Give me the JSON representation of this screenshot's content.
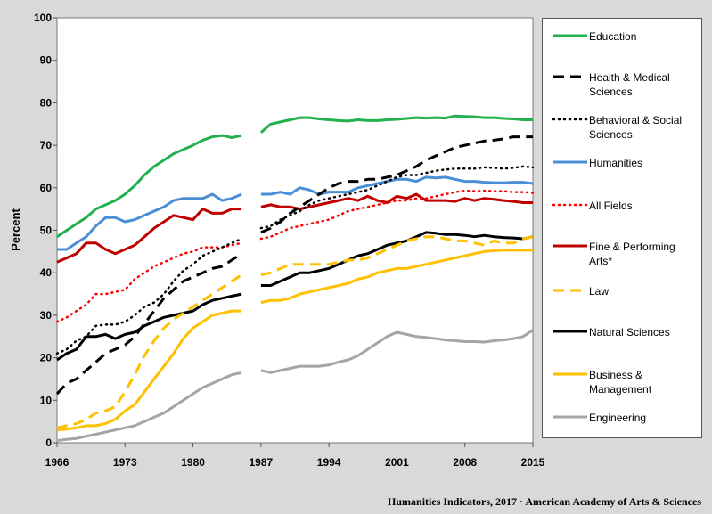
{
  "chart_data": {
    "type": "line",
    "title": "",
    "xlabel": "",
    "ylabel": "Percent",
    "xlim": [
      1966,
      2015
    ],
    "ylim": [
      0,
      100
    ],
    "x_ticks": [
      1966,
      1973,
      1980,
      1987,
      1994,
      2001,
      2008,
      2015
    ],
    "y_ticks": [
      0,
      10,
      20,
      30,
      40,
      50,
      60,
      70,
      80,
      90,
      100
    ],
    "grid": false,
    "legend_position": "right",
    "gap_years": [
      1986
    ],
    "series": [
      {
        "name": "Education",
        "color": "#22b14c",
        "style": "solid",
        "x": [
          1966,
          1967,
          1968,
          1969,
          1970,
          1971,
          1972,
          1973,
          1974,
          1975,
          1976,
          1977,
          1978,
          1979,
          1980,
          1981,
          1982,
          1983,
          1984,
          1985,
          1987,
          1988,
          1989,
          1990,
          1991,
          1992,
          1993,
          1994,
          1995,
          1996,
          1997,
          1998,
          1999,
          2000,
          2001,
          2002,
          2003,
          2004,
          2005,
          2006,
          2007,
          2008,
          2009,
          2010,
          2011,
          2012,
          2013,
          2014,
          2015
        ],
        "y": [
          48.5,
          50,
          51.5,
          53,
          55,
          56,
          57,
          58.5,
          60.5,
          63,
          65,
          66.5,
          68,
          69,
          70,
          71.2,
          72,
          72.3,
          71.8,
          72.3,
          73,
          75,
          75.5,
          76,
          76.5,
          76.5,
          76.2,
          76,
          75.8,
          75.7,
          76,
          75.8,
          75.8,
          76,
          76.1,
          76.3,
          76.5,
          76.4,
          76.5,
          76.4,
          76.9,
          76.8,
          76.7,
          76.5,
          76.5,
          76.3,
          76.2,
          76,
          76
        ]
      },
      {
        "name": "Health & Medical Sciences",
        "color": "#000000",
        "style": "dash",
        "x": [
          1966,
          1967,
          1968,
          1969,
          1970,
          1971,
          1972,
          1973,
          1974,
          1975,
          1976,
          1977,
          1978,
          1979,
          1980,
          1981,
          1982,
          1983,
          1984,
          1985,
          1987,
          1988,
          1989,
          1990,
          1991,
          1992,
          1993,
          1994,
          1995,
          1996,
          1997,
          1998,
          1999,
          2000,
          2001,
          2002,
          2003,
          2004,
          2005,
          2006,
          2007,
          2008,
          2009,
          2010,
          2011,
          2012,
          2013,
          2014,
          2015
        ],
        "y": [
          11.5,
          14,
          15,
          17,
          19,
          21,
          22,
          23,
          25,
          28,
          31,
          34,
          36,
          38,
          39,
          40,
          41,
          41.5,
          43,
          44.5,
          49.5,
          50.5,
          52,
          54,
          55.5,
          57,
          58.5,
          60,
          61,
          61.5,
          61.5,
          62,
          62,
          62.5,
          63,
          64,
          65,
          66.5,
          67.5,
          68.5,
          69.5,
          70,
          70.5,
          71,
          71.2,
          71.5,
          72,
          72,
          72
        ]
      },
      {
        "name": "Behavioral & Social Sciences",
        "color": "#000000",
        "style": "dot",
        "x": [
          1966,
          1967,
          1968,
          1969,
          1970,
          1971,
          1972,
          1973,
          1974,
          1975,
          1976,
          1977,
          1978,
          1979,
          1980,
          1981,
          1982,
          1983,
          1984,
          1985,
          1987,
          1988,
          1989,
          1990,
          1991,
          1992,
          1993,
          1994,
          1995,
          1996,
          1997,
          1998,
          1999,
          2000,
          2001,
          2002,
          2003,
          2004,
          2005,
          2006,
          2007,
          2008,
          2009,
          2010,
          2011,
          2012,
          2013,
          2014,
          2015
        ],
        "y": [
          21,
          22,
          24,
          25,
          27.5,
          27.8,
          27.8,
          28.5,
          30,
          32,
          33,
          35,
          38,
          40.5,
          42,
          44,
          45,
          46,
          47,
          48,
          50.5,
          51,
          52.5,
          53.5,
          54.5,
          56,
          57,
          57.5,
          58,
          58.5,
          59,
          59.5,
          60.5,
          61.5,
          62.5,
          63,
          63,
          63.5,
          64,
          64.3,
          64.5,
          64.5,
          64.5,
          64.8,
          64.7,
          64.5,
          64.7,
          65,
          64.8
        ]
      },
      {
        "name": "Humanities",
        "color": "#4a8fd6",
        "style": "solid",
        "x": [
          1966,
          1967,
          1968,
          1969,
          1970,
          1971,
          1972,
          1973,
          1974,
          1975,
          1976,
          1977,
          1978,
          1979,
          1980,
          1981,
          1982,
          1983,
          1984,
          1985,
          1987,
          1988,
          1989,
          1990,
          1991,
          1992,
          1993,
          1994,
          1995,
          1996,
          1997,
          1998,
          1999,
          2000,
          2001,
          2002,
          2003,
          2004,
          2005,
          2006,
          2007,
          2008,
          2009,
          2010,
          2011,
          2012,
          2013,
          2014,
          2015
        ],
        "y": [
          45.5,
          45.5,
          47,
          48.5,
          51,
          53,
          53,
          52,
          52.5,
          53.5,
          54.5,
          55.5,
          57,
          57.5,
          57.5,
          57.5,
          58.5,
          57,
          57.5,
          58.5,
          58.5,
          58.5,
          59,
          58.5,
          60,
          59.5,
          58.5,
          59,
          59,
          59,
          60,
          60.5,
          61,
          61.5,
          62,
          62,
          61.5,
          62.5,
          62.3,
          62.5,
          62,
          61.5,
          61.5,
          61.3,
          61.2,
          61.2,
          61.3,
          61.3,
          61
        ]
      },
      {
        "name": "All Fields",
        "color": "#ff0000",
        "style": "dot",
        "x": [
          1966,
          1967,
          1968,
          1969,
          1970,
          1971,
          1972,
          1973,
          1974,
          1975,
          1976,
          1977,
          1978,
          1979,
          1980,
          1981,
          1982,
          1983,
          1984,
          1985,
          1987,
          1988,
          1989,
          1990,
          1991,
          1992,
          1993,
          1994,
          1995,
          1996,
          1997,
          1998,
          1999,
          2000,
          2001,
          2002,
          2003,
          2004,
          2005,
          2006,
          2007,
          2008,
          2009,
          2010,
          2011,
          2012,
          2013,
          2014,
          2015
        ],
        "y": [
          28.5,
          29.5,
          31,
          32.5,
          35,
          35,
          35.5,
          36,
          38.5,
          40,
          41.5,
          42.5,
          43.5,
          44.5,
          45,
          46,
          46,
          46,
          46.5,
          47,
          48,
          48.5,
          49.5,
          50.5,
          51,
          51.5,
          52,
          52.5,
          53.5,
          54.5,
          55,
          55.5,
          56,
          56.5,
          57,
          57,
          57.5,
          57.5,
          58,
          58.5,
          59,
          59.3,
          59.2,
          59.3,
          59.2,
          59.2,
          59,
          59,
          58.8
        ]
      },
      {
        "name": "Fine & Performing Arts*",
        "color": "#c00000",
        "style": "solid",
        "x": [
          1966,
          1967,
          1968,
          1969,
          1970,
          1971,
          1972,
          1973,
          1974,
          1975,
          1976,
          1977,
          1978,
          1979,
          1980,
          1981,
          1982,
          1983,
          1984,
          1985,
          1987,
          1988,
          1989,
          1990,
          1991,
          1992,
          1993,
          1994,
          1995,
          1996,
          1997,
          1998,
          1999,
          2000,
          2001,
          2002,
          2003,
          2004,
          2005,
          2006,
          2007,
          2008,
          2009,
          2010,
          2011,
          2012,
          2013,
          2014,
          2015
        ],
        "y": [
          42.5,
          43.5,
          44.5,
          47,
          47,
          45.5,
          44.5,
          45.5,
          46.5,
          48.5,
          50.5,
          52,
          53.5,
          53,
          52.5,
          55,
          54,
          54,
          55,
          55,
          55.5,
          56,
          55.5,
          55.5,
          55,
          55.5,
          56,
          56.5,
          57,
          57.5,
          57,
          58,
          57,
          56.5,
          58,
          57.5,
          58.5,
          57,
          57,
          57,
          56.8,
          57.5,
          57,
          57.5,
          57.3,
          57,
          56.8,
          56.5,
          56.5
        ]
      },
      {
        "name": "Law",
        "color": "#ffc000",
        "style": "dash",
        "x": [
          1966,
          1967,
          1968,
          1969,
          1970,
          1971,
          1972,
          1973,
          1974,
          1975,
          1976,
          1977,
          1978,
          1979,
          1980,
          1981,
          1982,
          1983,
          1984,
          1985,
          1987,
          1988,
          1989,
          1990,
          1991,
          1992,
          1993,
          1994,
          1995,
          1996,
          1997,
          1998,
          1999,
          2000,
          2001,
          2002,
          2003,
          2004,
          2005,
          2006,
          2007,
          2008,
          2009,
          2010,
          2011,
          2012,
          2013,
          2014,
          2015
        ],
        "y": [
          3.5,
          4,
          4.5,
          5.5,
          7,
          7.5,
          8.5,
          12,
          16,
          20.5,
          24,
          27,
          29,
          30.5,
          32,
          33.5,
          35,
          36.5,
          38,
          39.5,
          39.5,
          40,
          41,
          42,
          42,
          42,
          42,
          42,
          42.5,
          43,
          43,
          43.5,
          44.5,
          45.5,
          46.5,
          47.5,
          48,
          48.5,
          48.5,
          48,
          47.5,
          47.5,
          47,
          46.5,
          47.5,
          47,
          47,
          48,
          48.5
        ]
      },
      {
        "name": "Natural Sciences",
        "color": "#000000",
        "style": "solid",
        "x": [
          1966,
          1967,
          1968,
          1969,
          1970,
          1971,
          1972,
          1973,
          1974,
          1975,
          1976,
          1977,
          1978,
          1979,
          1980,
          1981,
          1982,
          1983,
          1984,
          1985,
          1987,
          1988,
          1989,
          1990,
          1991,
          1992,
          1993,
          1994,
          1995,
          1996,
          1997,
          1998,
          1999,
          2000,
          2001,
          2002,
          2003,
          2004,
          2005,
          2006,
          2007,
          2008,
          2009,
          2010,
          2011,
          2012,
          2013,
          2014,
          2015
        ],
        "y": [
          19.5,
          21,
          22,
          25,
          25,
          25.5,
          24.5,
          25.5,
          26,
          27.5,
          28.5,
          29.5,
          30,
          30.5,
          31,
          32.5,
          33.5,
          34,
          34.5,
          35,
          37,
          37,
          38,
          39,
          40,
          40,
          40.5,
          41,
          42,
          43,
          44,
          44.5,
          45.5,
          46.5,
          47,
          47.5,
          48.5,
          49.5,
          49.3,
          49,
          49,
          48.8,
          48.5,
          48.8,
          48.5,
          48.3,
          48.2,
          48,
          48.5
        ]
      },
      {
        "name": "Business & Management",
        "color": "#ffc000",
        "style": "solid",
        "x": [
          1966,
          1967,
          1968,
          1969,
          1970,
          1971,
          1972,
          1973,
          1974,
          1975,
          1976,
          1977,
          1978,
          1979,
          1980,
          1981,
          1982,
          1983,
          1984,
          1985,
          1987,
          1988,
          1989,
          1990,
          1991,
          1992,
          1993,
          1994,
          1995,
          1996,
          1997,
          1998,
          1999,
          2000,
          2001,
          2002,
          2003,
          2004,
          2005,
          2006,
          2007,
          2008,
          2009,
          2010,
          2011,
          2012,
          2013,
          2014,
          2015
        ],
        "y": [
          3,
          3.2,
          3.5,
          4,
          4,
          4.5,
          5.5,
          7.5,
          9,
          12,
          15,
          18,
          21,
          24.5,
          27,
          28.5,
          30,
          30.5,
          31,
          31,
          33,
          33.5,
          33.5,
          34,
          35,
          35.5,
          36,
          36.5,
          37,
          37.5,
          38.5,
          39,
          40,
          40.5,
          41,
          41,
          41.5,
          42,
          42.5,
          43,
          43.5,
          44,
          44.5,
          45,
          45.2,
          45.3,
          45.3,
          45.3,
          45.3
        ]
      },
      {
        "name": "Engineering",
        "color": "#a5a5a5",
        "style": "solid",
        "x": [
          1966,
          1967,
          1968,
          1969,
          1970,
          1971,
          1972,
          1973,
          1974,
          1975,
          1976,
          1977,
          1978,
          1979,
          1980,
          1981,
          1982,
          1983,
          1984,
          1985,
          1987,
          1988,
          1989,
          1990,
          1991,
          1992,
          1993,
          1994,
          1995,
          1996,
          1997,
          1998,
          1999,
          2000,
          2001,
          2002,
          2003,
          2004,
          2005,
          2006,
          2007,
          2008,
          2009,
          2010,
          2011,
          2012,
          2013,
          2014,
          2015
        ],
        "y": [
          0.5,
          0.8,
          1,
          1.5,
          2,
          2.5,
          3,
          3.5,
          4,
          5,
          6,
          7,
          8.5,
          10,
          11.5,
          13,
          14,
          15,
          16,
          16.5,
          17,
          16.5,
          17,
          17.5,
          18,
          18,
          18,
          18.3,
          19,
          19.5,
          20.5,
          22,
          23.5,
          25,
          26,
          25.5,
          25,
          24.8,
          24.5,
          24.2,
          24,
          23.8,
          23.8,
          23.7,
          24,
          24.2,
          24.5,
          25,
          26.5
        ]
      }
    ]
  },
  "footer": {
    "text": "Humanities Indicators, 2017 · American Academy of Arts & Sciences"
  }
}
